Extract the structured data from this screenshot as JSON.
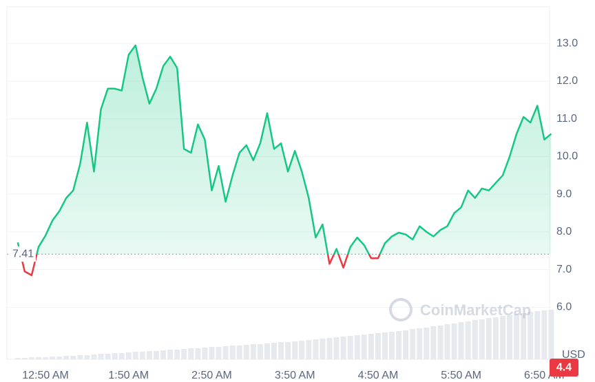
{
  "chart_data": {
    "type": "line",
    "categories": [
      null,
      null,
      null,
      null,
      "12:50 AM",
      null,
      null,
      null,
      null,
      null,
      null,
      null,
      null,
      null,
      null,
      null,
      "1:50 AM",
      null,
      null,
      null,
      null,
      null,
      null,
      null,
      null,
      null,
      null,
      null,
      "2:50 AM",
      null,
      null,
      null,
      null,
      null,
      null,
      null,
      null,
      null,
      null,
      null,
      "3:50 AM",
      null,
      null,
      null,
      null,
      null,
      null,
      null,
      null,
      null,
      null,
      null,
      "4:50 AM",
      null,
      null,
      null,
      null,
      null,
      null,
      null,
      null,
      null,
      null,
      null,
      "5:50 AM",
      null,
      null,
      null,
      null,
      null,
      null,
      null,
      null,
      null,
      null,
      null,
      "6:50 AM",
      null
    ],
    "series": [
      {
        "color": "#16c784",
        "down_color": "#ea3943",
        "values": [
          7.72,
          6.95,
          6.85,
          7.6,
          7.9,
          8.3,
          8.55,
          8.9,
          9.1,
          9.8,
          10.9,
          9.6,
          11.25,
          11.8,
          11.8,
          11.75,
          12.7,
          12.95,
          12.1,
          11.4,
          11.8,
          12.4,
          12.65,
          12.35,
          10.2,
          10.1,
          10.85,
          10.45,
          9.1,
          9.75,
          8.8,
          9.5,
          10.1,
          10.3,
          9.9,
          10.35,
          11.15,
          10.2,
          10.35,
          9.6,
          10.15,
          9.6,
          8.9,
          7.85,
          8.2,
          7.15,
          7.55,
          7.05,
          7.6,
          7.85,
          7.65,
          7.3,
          7.3,
          7.7,
          7.88,
          7.98,
          7.93,
          7.8,
          8.15,
          8.0,
          7.88,
          8.05,
          8.15,
          8.5,
          8.65,
          9.1,
          8.9,
          9.15,
          9.1,
          9.3,
          9.5,
          10.0,
          10.6,
          11.05,
          10.9,
          11.35,
          10.45,
          10.6
        ],
        "volume": [
          2,
          2,
          3,
          3,
          3,
          4,
          4,
          5,
          5,
          6,
          6,
          7,
          8,
          8,
          9,
          9,
          10,
          11,
          11,
          12,
          12,
          13,
          14,
          14,
          15,
          16,
          16,
          17,
          18,
          18,
          19,
          20,
          20,
          21,
          22,
          22,
          23,
          24,
          25,
          25,
          26,
          27,
          28,
          29,
          30,
          31,
          32,
          33,
          34,
          35,
          36,
          37,
          38,
          39,
          40,
          41,
          42,
          44,
          45,
          46,
          48,
          49,
          51,
          52,
          54,
          55,
          57,
          58,
          60,
          61,
          63,
          64,
          66,
          67,
          69,
          70,
          71,
          72
        ],
        "volume_color": "#e6e9ee"
      }
    ],
    "baseline": 7.41,
    "ylim": [
      4.62,
      13.97
    ],
    "yticks": [
      {
        "value": 6,
        "label": "6.0"
      },
      {
        "value": 7,
        "label": "7.0"
      },
      {
        "value": 8,
        "label": "8.0"
      },
      {
        "value": 9,
        "label": "9.0"
      },
      {
        "value": 10,
        "label": "10.0"
      },
      {
        "value": 11,
        "label": "11.0"
      },
      {
        "value": 12,
        "label": "12.0"
      },
      {
        "value": 13,
        "label": "13.0"
      }
    ],
    "grid": true,
    "y_unit": "USD",
    "badge": 4.4,
    "watermark": "CoinMarketCap"
  }
}
